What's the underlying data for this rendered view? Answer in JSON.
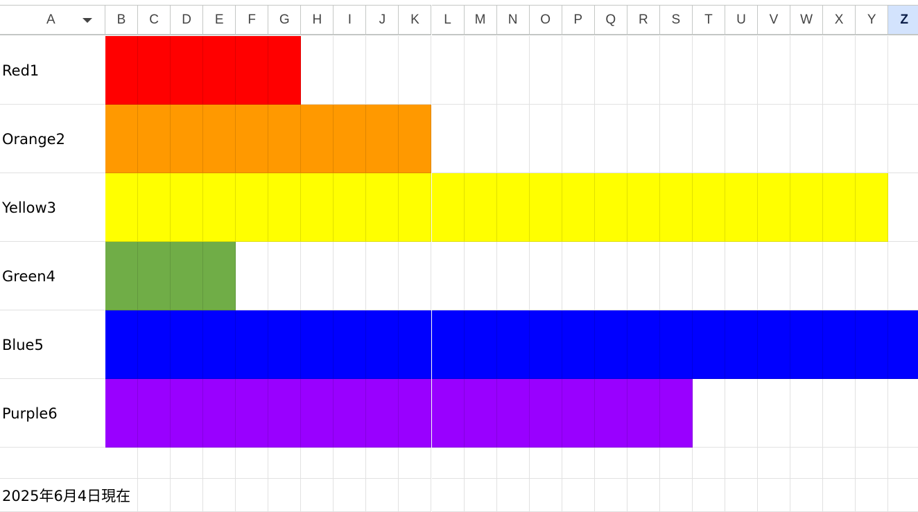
{
  "columns": [
    "A",
    "B",
    "C",
    "D",
    "E",
    "F",
    "G",
    "H",
    "I",
    "J",
    "K",
    "L",
    "M",
    "N",
    "O",
    "P",
    "Q",
    "R",
    "S",
    "T",
    "U",
    "V",
    "W",
    "X",
    "Y",
    "Z"
  ],
  "selected_column": "Z",
  "column_a_dropdown_icon": "caret-down-icon",
  "rows": [
    {
      "label": "Red1",
      "color": "#ff0000",
      "filled_columns": 6
    },
    {
      "label": "Orange2",
      "color": "#ff9900",
      "filled_columns": 10
    },
    {
      "label": "Yellow3",
      "color": "#ffff00",
      "filled_columns": 24
    },
    {
      "label": "Green4",
      "color": "#70ad47",
      "filled_columns": 4
    },
    {
      "label": "Blue5",
      "color": "#0000ff",
      "filled_columns": 25
    },
    {
      "label": "Purple6",
      "color": "#9900ff",
      "filled_columns": 18
    }
  ],
  "footer_note": "2025年6月4日現在"
}
